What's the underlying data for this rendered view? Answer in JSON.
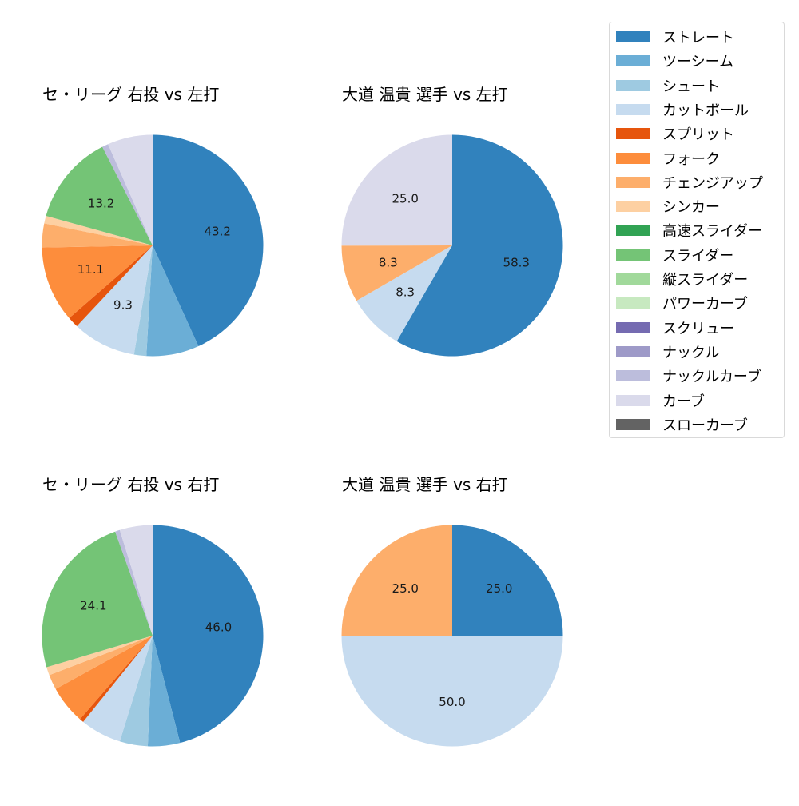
{
  "legend": {
    "items": [
      {
        "label": "ストレート",
        "color": "#3182bd"
      },
      {
        "label": "ツーシーム",
        "color": "#6baed6"
      },
      {
        "label": "シュート",
        "color": "#9ecae1"
      },
      {
        "label": "カットボール",
        "color": "#c6dbef"
      },
      {
        "label": "スプリット",
        "color": "#e6550d"
      },
      {
        "label": "フォーク",
        "color": "#fd8d3c"
      },
      {
        "label": "チェンジアップ",
        "color": "#fdae6b"
      },
      {
        "label": "シンカー",
        "color": "#fdd0a2"
      },
      {
        "label": "高速スライダー",
        "color": "#31a354"
      },
      {
        "label": "スライダー",
        "color": "#74c476"
      },
      {
        "label": "縦スライダー",
        "color": "#a1d99b"
      },
      {
        "label": "パワーカーブ",
        "color": "#c7e9c0"
      },
      {
        "label": "スクリュー",
        "color": "#756bb1"
      },
      {
        "label": "ナックル",
        "color": "#9e9ac8"
      },
      {
        "label": "ナックルカーブ",
        "color": "#bcbddc"
      },
      {
        "label": "カーブ",
        "color": "#dadaeb"
      },
      {
        "label": "スローカーブ",
        "color": "#636363"
      }
    ]
  },
  "chart_data": [
    {
      "type": "pie",
      "title": "セ・リーグ 右投 vs 左打",
      "categories": [
        "ストレート",
        "ツーシーム",
        "シュート",
        "カットボール",
        "スプリット",
        "フォーク",
        "チェンジアップ",
        "シンカー",
        "スライダー",
        "ナックルカーブ",
        "カーブ"
      ],
      "values": [
        43.2,
        7.7,
        1.8,
        9.3,
        1.6,
        11.1,
        3.5,
        1.1,
        13.2,
        0.9,
        6.6
      ],
      "labels_shown": [
        "43.2",
        "",
        "",
        "9.3",
        "",
        "11.1",
        "",
        "",
        "13.2",
        "",
        ""
      ],
      "colors": [
        "#3182bd",
        "#6baed6",
        "#9ecae1",
        "#c6dbef",
        "#e6550d",
        "#fd8d3c",
        "#fdae6b",
        "#fdd0a2",
        "#74c476",
        "#bcbddc",
        "#dadaeb"
      ],
      "startangle": 90,
      "direction": "clockwise"
    },
    {
      "type": "pie",
      "title": "大道 温貴 選手 vs 左打",
      "categories": [
        "ストレート",
        "カットボール",
        "チェンジアップ",
        "カーブ"
      ],
      "values": [
        58.3,
        8.3,
        8.3,
        25.0
      ],
      "labels_shown": [
        "58.3",
        "8.3",
        "8.3",
        "25.0"
      ],
      "colors": [
        "#3182bd",
        "#c6dbef",
        "#fdae6b",
        "#dadaeb"
      ],
      "startangle": 90,
      "direction": "clockwise"
    },
    {
      "type": "pie",
      "title": "セ・リーグ 右投 vs 右打",
      "categories": [
        "ストレート",
        "ツーシーム",
        "シュート",
        "カットボール",
        "スプリット",
        "フォーク",
        "チェンジアップ",
        "シンカー",
        "スライダー",
        "ナックルカーブ",
        "カーブ"
      ],
      "values": [
        46.0,
        4.7,
        4.1,
        6.0,
        0.6,
        5.6,
        2.2,
        1.2,
        24.1,
        0.7,
        4.8
      ],
      "labels_shown": [
        "46.0",
        "",
        "",
        "",
        "",
        "",
        "",
        "",
        "24.1",
        "",
        ""
      ],
      "colors": [
        "#3182bd",
        "#6baed6",
        "#9ecae1",
        "#c6dbef",
        "#e6550d",
        "#fd8d3c",
        "#fdae6b",
        "#fdd0a2",
        "#74c476",
        "#bcbddc",
        "#dadaeb"
      ],
      "startangle": 90,
      "direction": "clockwise"
    },
    {
      "type": "pie",
      "title": "大道 温貴 選手 vs 右打",
      "categories": [
        "ストレート",
        "カットボール",
        "チェンジアップ"
      ],
      "values": [
        25.0,
        50.0,
        25.0
      ],
      "labels_shown": [
        "25.0",
        "50.0",
        "25.0"
      ],
      "colors": [
        "#3182bd",
        "#c6dbef",
        "#fdae6b"
      ],
      "startangle": 90,
      "direction": "clockwise"
    }
  ]
}
